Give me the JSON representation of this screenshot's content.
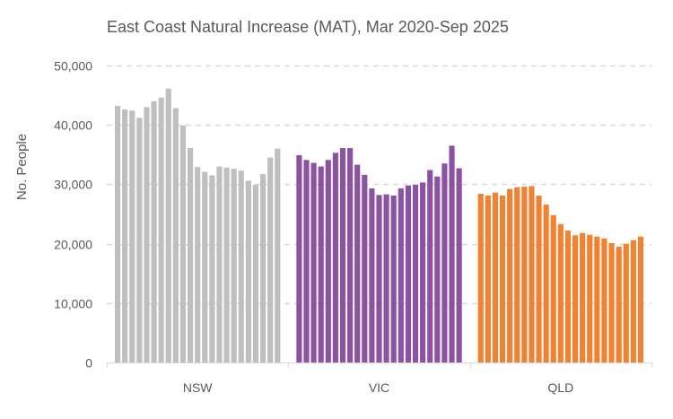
{
  "chart_data": {
    "type": "bar",
    "title": "East Coast Natural Increase (MAT), Mar 2020-Sep 2025",
    "xlabel": "",
    "ylabel": "No. People",
    "ylim": [
      0,
      50000
    ],
    "yticks": [
      0,
      10000,
      20000,
      30000,
      40000,
      50000
    ],
    "ytick_labels": [
      "0",
      "10,000",
      "20,000",
      "30,000",
      "40,000",
      "50,000"
    ],
    "grid": true,
    "groups": [
      {
        "name": "NSW",
        "color": "#bfbfbf",
        "values": [
          43200,
          42600,
          42400,
          41200,
          43000,
          44000,
          44600,
          46100,
          42800,
          39900,
          36100,
          32900,
          32100,
          31500,
          33000,
          32800,
          32600,
          32300,
          30600,
          29900,
          31700,
          34500,
          36000
        ]
      },
      {
        "name": "VIC",
        "color": "#8b52a1",
        "values": [
          34900,
          34100,
          33600,
          33000,
          34100,
          35300,
          36100,
          36100,
          33300,
          31600,
          29300,
          28200,
          28300,
          28100,
          29300,
          29800,
          29900,
          30300,
          32400,
          31300,
          33500,
          36500,
          32700
        ]
      },
      {
        "name": "QLD",
        "color": "#f08232",
        "values": [
          28400,
          28100,
          28600,
          28100,
          29200,
          29500,
          29600,
          29700,
          28100,
          26600,
          24800,
          23300,
          22200,
          21400,
          21800,
          21500,
          21200,
          20900,
          20100,
          19500,
          20000,
          20600,
          21200
        ]
      }
    ]
  }
}
